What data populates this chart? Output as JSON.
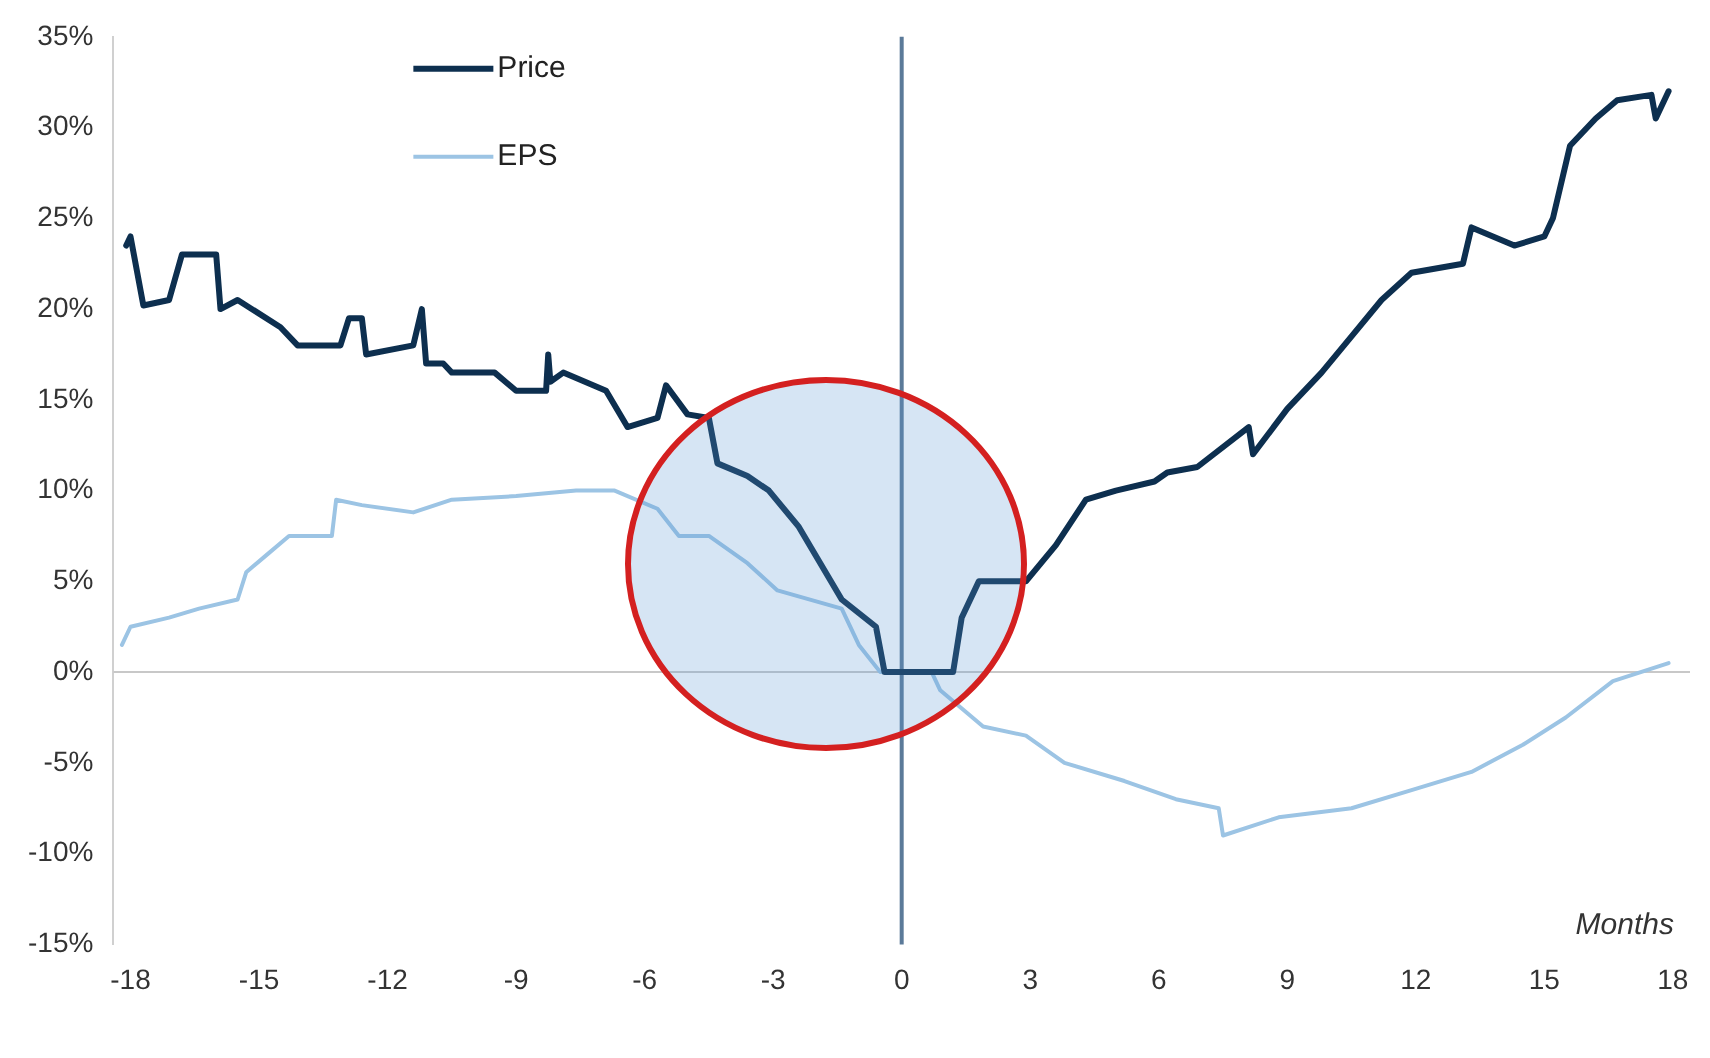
{
  "chart_data": {
    "type": "line",
    "xlabel": "Months",
    "legend": "top left",
    "grid": false,
    "marker": "none",
    "line_style": "solid",
    "xlim": [
      -18.4,
      18.4
    ],
    "xticks": [
      -18,
      -15,
      -12,
      -9,
      -6,
      -3,
      0,
      3,
      6,
      9,
      12,
      15,
      18
    ],
    "ylim": [
      -15,
      35
    ],
    "yticks": [
      {
        "value": -15,
        "label": "-15%"
      },
      {
        "value": -10,
        "label": "-10%"
      },
      {
        "value": -5,
        "label": "-5%"
      },
      {
        "value": 0,
        "label": "0%"
      },
      {
        "value": 5,
        "label": "5%"
      },
      {
        "value": 10,
        "label": "10%"
      },
      {
        "value": 15,
        "label": "15%"
      },
      {
        "value": 20,
        "label": "20%"
      },
      {
        "value": 25,
        "label": "25%"
      },
      {
        "value": 30,
        "label": "30%"
      },
      {
        "value": 35,
        "label": "35%"
      }
    ],
    "ref_lines": [
      {
        "axis": "y",
        "value": 0,
        "color": "#c8c8c8"
      },
      {
        "axis": "x",
        "value": 0,
        "color": "#5b7a99"
      }
    ],
    "series": [
      {
        "name": "Price",
        "color": "#0d2f4f",
        "x": [
          -18.1,
          -18,
          -17.7,
          -17.1,
          -16.8,
          -16,
          -15.9,
          -15.5,
          -14.5,
          -14.1,
          -13.1,
          -12.9,
          -12.6,
          -12.5,
          -11.4,
          -11.2,
          -11.1,
          -10.7,
          -10.5,
          -9.5,
          -9,
          -8.3,
          -8.25,
          -8.2,
          -7.9,
          -6.9,
          -6.4,
          -5.7,
          -5.5,
          -5,
          -4.5,
          -4.3,
          -3.6,
          -3.1,
          -2.4,
          -1.9,
          -1.4,
          -0.6,
          -0.4,
          1.2,
          1.4,
          1.8,
          2.9,
          3.6,
          4.3,
          5,
          5.9,
          6.2,
          6.9,
          8.1,
          8.2,
          9,
          9.8,
          10.5,
          11.2,
          11.9,
          13.1,
          13.3,
          14.3,
          15,
          15.2,
          15.6,
          16.2,
          16.7,
          17.5,
          17.6,
          17.9
        ],
        "values": [
          23.5,
          24,
          20.2,
          20.5,
          23,
          23,
          20,
          20.5,
          19,
          18,
          18,
          19.5,
          19.5,
          17.5,
          18,
          20,
          17,
          17,
          16.5,
          16.5,
          15.5,
          15.5,
          17.5,
          16,
          16.5,
          15.5,
          13.5,
          14,
          15.8,
          14.2,
          14,
          11.5,
          10.8,
          10,
          8,
          6,
          4,
          2.5,
          0,
          0,
          3,
          5,
          5,
          7,
          9.5,
          10,
          10.5,
          11,
          11.3,
          13.5,
          12,
          14.5,
          16.5,
          18.5,
          20.5,
          22,
          22.5,
          24.5,
          23.5,
          24,
          25,
          29,
          30.5,
          31.5,
          31.8,
          30.5,
          32
        ]
      },
      {
        "name": "EPS",
        "color": "#9cc4e4",
        "x": [
          -18.2,
          -18,
          -17.1,
          -16.4,
          -15.5,
          -15.3,
          -14.8,
          -14.3,
          -13.3,
          -13.2,
          -12.6,
          -11.4,
          -10.5,
          -9,
          -7.6,
          -6.7,
          -5.7,
          -5.2,
          -4.5,
          -3.6,
          -2.9,
          -1.4,
          -1,
          -0.5,
          0.7,
          0.9,
          1.9,
          2.9,
          3.8,
          5.2,
          6.4,
          7.4,
          7.5,
          8.8,
          10.5,
          11.9,
          13.3,
          14.5,
          15.5,
          16.6,
          17.9
        ],
        "values": [
          1.5,
          2.5,
          3,
          3.5,
          4,
          5.5,
          6.5,
          7.5,
          7.5,
          9.5,
          9.2,
          8.8,
          9.5,
          9.7,
          10,
          10,
          9,
          7.5,
          7.5,
          6,
          4.5,
          3.5,
          1.5,
          0,
          0,
          -1,
          -3,
          -3.5,
          -5,
          -6,
          -7,
          -7.5,
          -9,
          -8,
          -7.5,
          -6.5,
          -5.5,
          -4,
          -2.5,
          -0.5,
          0.5
        ]
      }
    ]
  }
}
